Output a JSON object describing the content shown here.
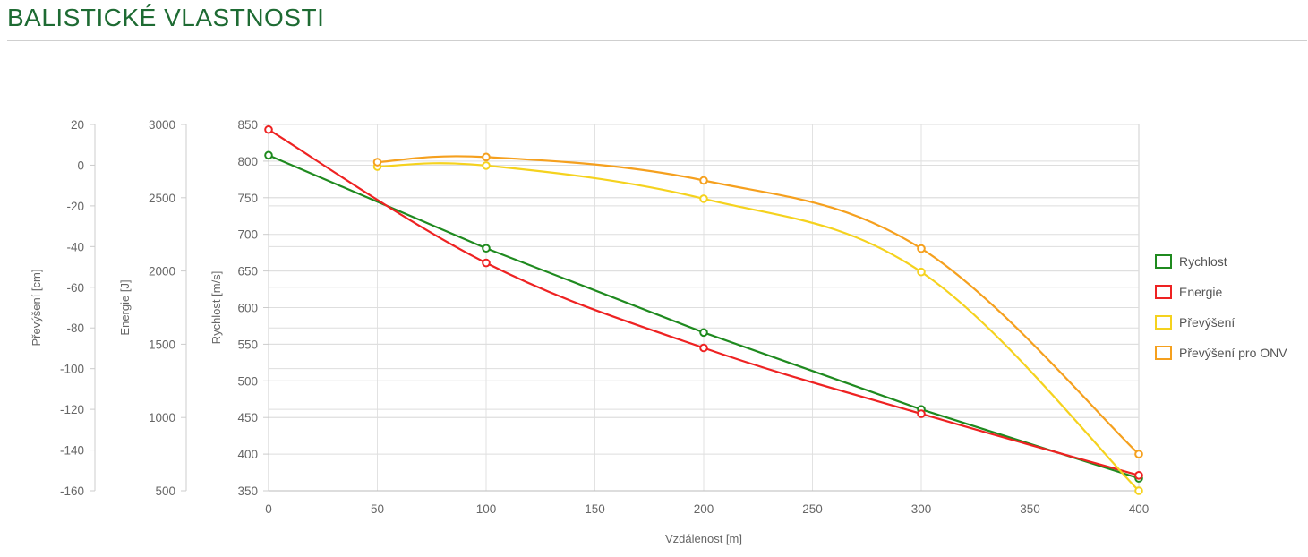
{
  "page": {
    "title": "BALISTICKÉ VLASTNOSTI",
    "title_color": "#1e6b33"
  },
  "chart_data": {
    "type": "line",
    "xlabel": "Vzdálenost [m]",
    "x_ticks": [
      "0",
      "50",
      "100",
      "150",
      "200",
      "250",
      "300",
      "350",
      "400"
    ],
    "xlim": [
      0,
      400
    ],
    "grid": true,
    "legend_position": "right",
    "axes": [
      {
        "id": "velocity",
        "label": "Rychlost [m/s]",
        "range": [
          350,
          850
        ],
        "ticks": [
          "850",
          "800",
          "750",
          "700",
          "650",
          "600",
          "550",
          "500",
          "450",
          "400",
          "350"
        ]
      },
      {
        "id": "energy",
        "label": "Energie [J]",
        "range": [
          500,
          3000
        ],
        "ticks": [
          "3000",
          "2500",
          "2000",
          "1500",
          "1000",
          "500"
        ]
      },
      {
        "id": "drop",
        "label": "Převýšení [cm]",
        "range": [
          -160,
          20
        ],
        "ticks": [
          "20",
          "0",
          "-20",
          "-40",
          "-60",
          "-80",
          "-100",
          "-120",
          "-140",
          "-160"
        ]
      }
    ],
    "series": [
      {
        "name": "Rychlost",
        "axis": "velocity",
        "color": "#1f8a1f",
        "x": [
          0,
          100,
          200,
          300,
          400
        ],
        "y": [
          808,
          681,
          566,
          461,
          367
        ]
      },
      {
        "name": "Energie",
        "axis": "energy",
        "color": "#ee2222",
        "x": [
          0,
          100,
          200,
          300,
          400
        ],
        "y": [
          2965,
          2055,
          1475,
          1025,
          605
        ]
      },
      {
        "name": "Převýšení",
        "axis": "drop",
        "color": "#f5d21e",
        "x": [
          50,
          100,
          200,
          300,
          400
        ],
        "y": [
          -0.7,
          -0.2,
          -16.5,
          -52.5,
          -160
        ]
      },
      {
        "name": "Převýšení pro ONV",
        "axis": "drop",
        "color": "#f5a01e",
        "x": [
          50,
          100,
          200,
          300,
          400
        ],
        "y": [
          1.5,
          4.0,
          -7.5,
          -41,
          -142
        ]
      }
    ]
  }
}
